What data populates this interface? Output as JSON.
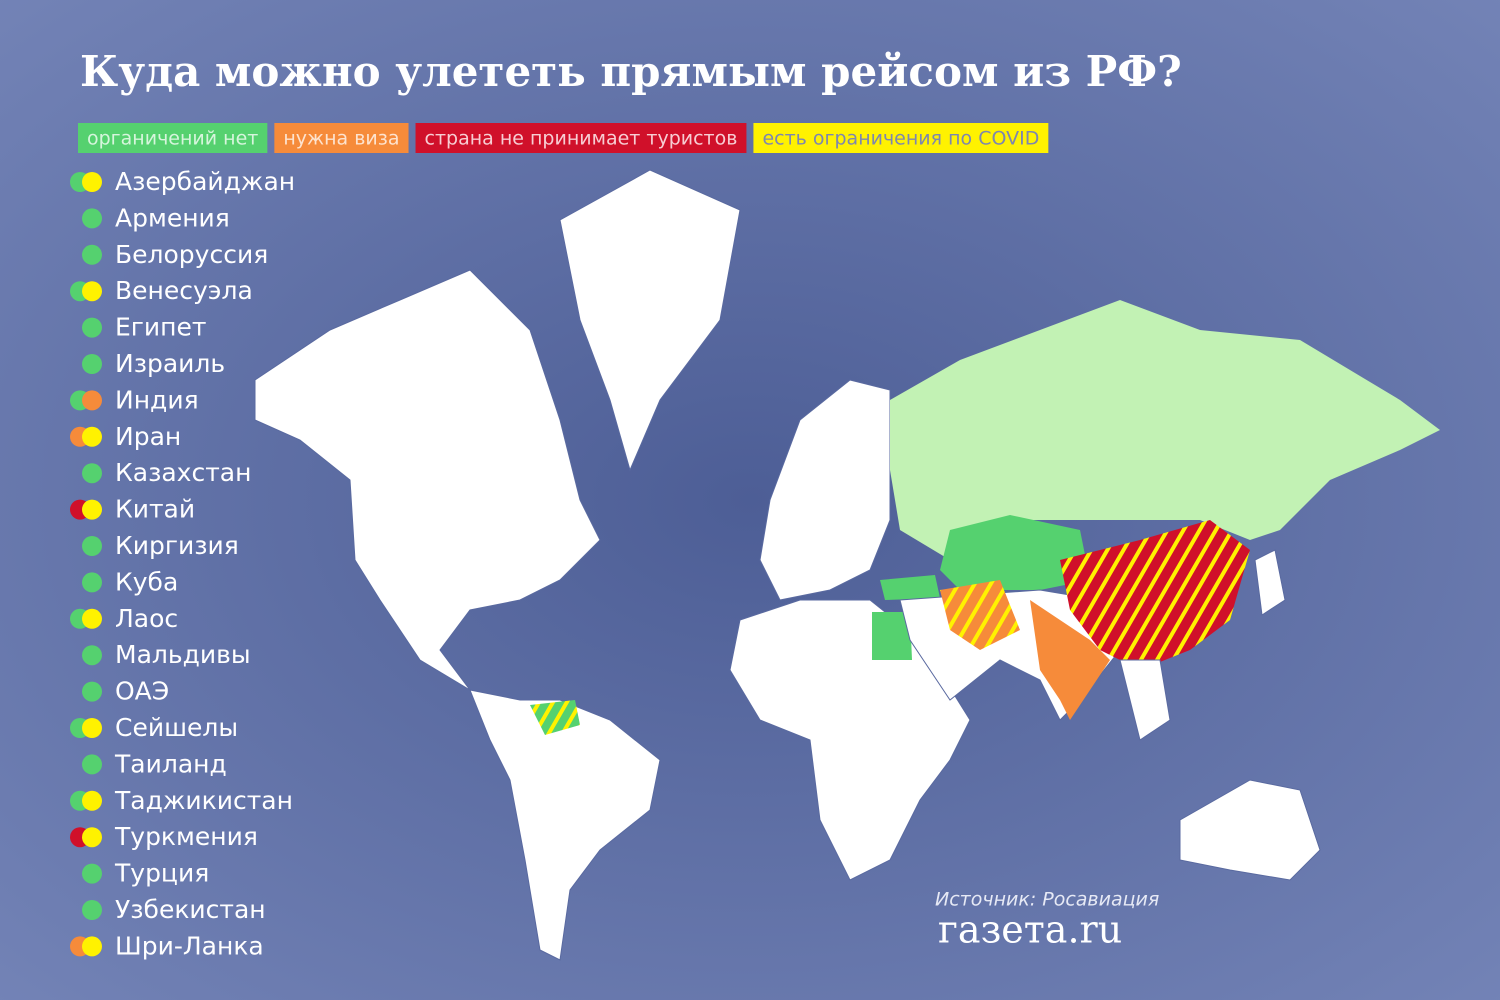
{
  "header": {
    "title": "Куда можно улететь прямым рейсом из РФ?"
  },
  "legend": [
    {
      "label": "органичений нет",
      "color": "#55d16f",
      "text_color": "#d6f5dc"
    },
    {
      "label": "нужна виза",
      "color": "#f68b3a",
      "text_color": "#fde3cf"
    },
    {
      "label": "страна не принимает туристов",
      "color": "#d0102a",
      "text_color": "#f7cdd3"
    },
    {
      "label": "есть ограничения по COVID",
      "color": "#fff200",
      "text_color": "#7d86b0"
    }
  ],
  "countries": [
    {
      "name": "Азербайджан",
      "dots": [
        "#55d16f",
        "#fff200"
      ]
    },
    {
      "name": "Армения",
      "dots": [
        "#55d16f"
      ]
    },
    {
      "name": "Белоруссия",
      "dots": [
        "#55d16f"
      ]
    },
    {
      "name": "Венесуэла",
      "dots": [
        "#55d16f",
        "#fff200"
      ]
    },
    {
      "name": "Египет",
      "dots": [
        "#55d16f"
      ]
    },
    {
      "name": "Израиль",
      "dots": [
        "#55d16f"
      ]
    },
    {
      "name": "Индия",
      "dots": [
        "#55d16f",
        "#f68b3a"
      ]
    },
    {
      "name": "Иран",
      "dots": [
        "#f68b3a",
        "#fff200"
      ]
    },
    {
      "name": "Казахстан",
      "dots": [
        "#55d16f"
      ]
    },
    {
      "name": "Китай",
      "dots": [
        "#d0102a",
        "#fff200"
      ]
    },
    {
      "name": "Киргизия",
      "dots": [
        "#55d16f"
      ]
    },
    {
      "name": "Куба",
      "dots": [
        "#55d16f"
      ]
    },
    {
      "name": "Лаос",
      "dots": [
        "#55d16f",
        "#fff200"
      ]
    },
    {
      "name": "Мальдивы",
      "dots": [
        "#55d16f"
      ]
    },
    {
      "name": "ОАЭ",
      "dots": [
        "#55d16f"
      ]
    },
    {
      "name": "Сейшелы",
      "dots": [
        "#55d16f",
        "#fff200"
      ]
    },
    {
      "name": "Таиланд",
      "dots": [
        "#55d16f"
      ]
    },
    {
      "name": "Таджикистан",
      "dots": [
        "#55d16f",
        "#fff200"
      ]
    },
    {
      "name": "Туркмения",
      "dots": [
        "#d0102a",
        "#fff200"
      ]
    },
    {
      "name": "Турция",
      "dots": [
        "#55d16f"
      ]
    },
    {
      "name": "Узбекистан",
      "dots": [
        "#55d16f"
      ]
    },
    {
      "name": "Шри-Ланка",
      "dots": [
        "#f68b3a",
        "#fff200"
      ]
    }
  ],
  "footer": {
    "source": "Источник: Росавиация",
    "logo": "газета.ru"
  }
}
